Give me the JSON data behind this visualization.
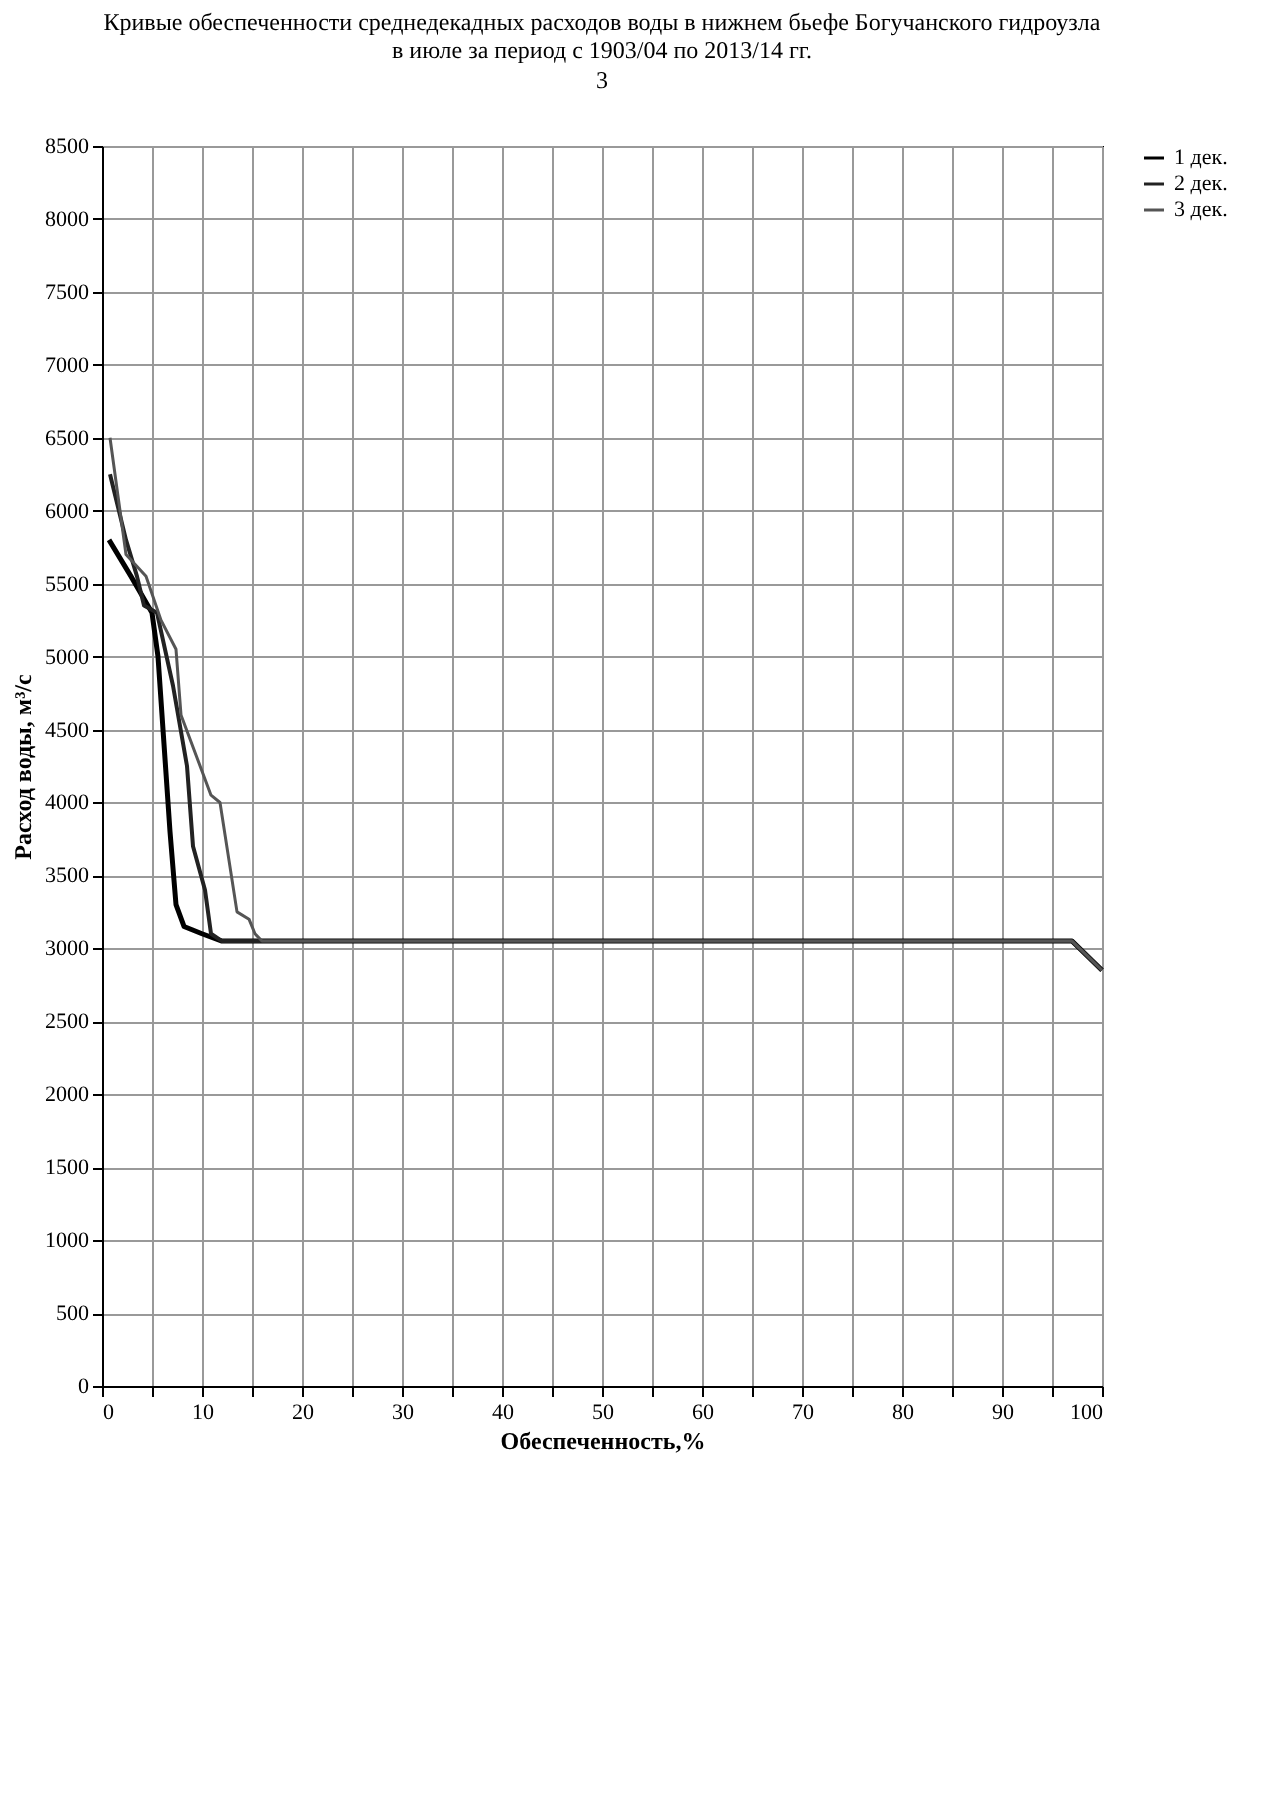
{
  "chart_data": {
    "type": "line",
    "title": "Кривые обеспеченности среднедекадных расходов воды в нижнем бьефе Богучанского гидроузла в июле за период с 1903/04 по 2013/14 гг.",
    "xlabel": "Обеспеченность,%",
    "ylabel": "Расход воды, м³/с",
    "annotations": [
      "3"
    ],
    "xlim": [
      0,
      100
    ],
    "ylim": [
      0,
      8500
    ],
    "xticks": [
      0,
      {
        "value": 5,
        "label": null
      },
      10,
      {
        "value": 15,
        "label": null
      },
      20,
      {
        "value": 25,
        "label": null
      },
      30,
      {
        "value": 35,
        "label": null
      },
      40,
      {
        "value": 45,
        "label": null
      },
      50,
      {
        "value": 55,
        "label": null
      },
      60,
      {
        "value": 65,
        "label": null
      },
      70,
      {
        "value": 75,
        "label": null
      },
      80,
      {
        "value": 85,
        "label": null
      },
      90,
      {
        "value": 95,
        "label": null
      },
      100
    ],
    "yticks": [
      0,
      500,
      1000,
      1500,
      2000,
      2500,
      3000,
      3500,
      4000,
      4500,
      5000,
      5500,
      6000,
      6500,
      7000,
      7500,
      8000,
      8500
    ],
    "grid": true,
    "legend": "right",
    "marker": "none",
    "line_style": "solid",
    "series": [
      {
        "name": "1 дек.",
        "color": "#000000",
        "x": [
          0.7,
          2.9,
          5.0,
          5.6,
          6.2,
          6.8,
          7.4,
          8.2,
          10,
          12,
          97,
          100
        ],
        "values": [
          5800,
          5550,
          5300,
          5000,
          4400,
          3800,
          3300,
          3150,
          3100,
          3050,
          3050,
          2850
        ]
      },
      {
        "name": "2 дек.",
        "color": "#222222",
        "x": [
          0.8,
          2.4,
          3.5,
          4.2,
          5.5,
          7.1,
          8.5,
          9.1,
          10.3,
          10.9,
          12,
          97,
          100
        ],
        "values": [
          6250,
          5800,
          5550,
          5350,
          5300,
          4800,
          4250,
          3700,
          3400,
          3100,
          3050,
          3050,
          2850
        ]
      },
      {
        "name": "3 дек.",
        "color": "#555555",
        "x": [
          0.8,
          2.4,
          4.4,
          5.9,
          7.4,
          7.9,
          10.9,
          11.8,
          13.5,
          14.7,
          15.3,
          16,
          97,
          100
        ],
        "values": [
          6500,
          5700,
          5550,
          5250,
          5050,
          4600,
          4050,
          4000,
          3250,
          3200,
          3100,
          3050,
          3050,
          2850
        ]
      }
    ]
  }
}
